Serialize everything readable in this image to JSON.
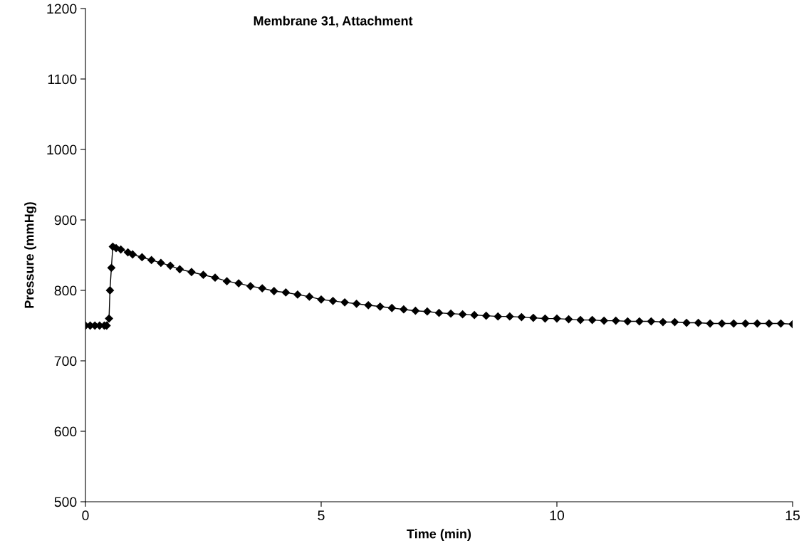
{
  "chart_data": {
    "type": "line",
    "title": "Membrane 31, Attachment",
    "xlabel": "Time (min)",
    "ylabel": "Pressure (mmHg)",
    "x": [
      0,
      0.1,
      0.2,
      0.3,
      0.4,
      0.45,
      0.5,
      0.52,
      0.55,
      0.58,
      0.65,
      0.75,
      0.9,
      1.0,
      1.2,
      1.4,
      1.6,
      1.8,
      2.0,
      2.25,
      2.5,
      2.75,
      3.0,
      3.25,
      3.5,
      3.75,
      4.0,
      4.25,
      4.5,
      4.75,
      5.0,
      5.25,
      5.5,
      5.75,
      6.0,
      6.25,
      6.5,
      6.75,
      7.0,
      7.25,
      7.5,
      7.75,
      8.0,
      8.25,
      8.5,
      8.75,
      9.0,
      9.25,
      9.5,
      9.75,
      10.0,
      10.25,
      10.5,
      10.75,
      11.0,
      11.25,
      11.5,
      11.75,
      12.0,
      12.25,
      12.5,
      12.75,
      13.0,
      13.25,
      13.5,
      13.75,
      14.0,
      14.25,
      14.5,
      14.75,
      15.0
    ],
    "series": [
      {
        "color": "#000000",
        "values": [
          750,
          750,
          750,
          750,
          750,
          750,
          760,
          800,
          832,
          862,
          860,
          858,
          854,
          851,
          847,
          843,
          839,
          835,
          830,
          826,
          822,
          818,
          813,
          810,
          806,
          803,
          799,
          797,
          794,
          791,
          787,
          785,
          783,
          781,
          779,
          777,
          775,
          773,
          771,
          770,
          768,
          767,
          766,
          765,
          764,
          763,
          763,
          762,
          761,
          760,
          760,
          759,
          758,
          758,
          757,
          757,
          756,
          756,
          756,
          755,
          755,
          754,
          754,
          753,
          753,
          753,
          753,
          753,
          753,
          753,
          752
        ]
      }
    ],
    "xlim": [
      0,
      15
    ],
    "xticks": [
      0,
      5,
      10,
      15
    ],
    "ylim": [
      500,
      1200
    ],
    "yticks": [
      500,
      600,
      700,
      800,
      900,
      1000,
      1100,
      1200
    ],
    "grid": false,
    "legend": false,
    "marker": "diamond",
    "line_style": "solid"
  }
}
